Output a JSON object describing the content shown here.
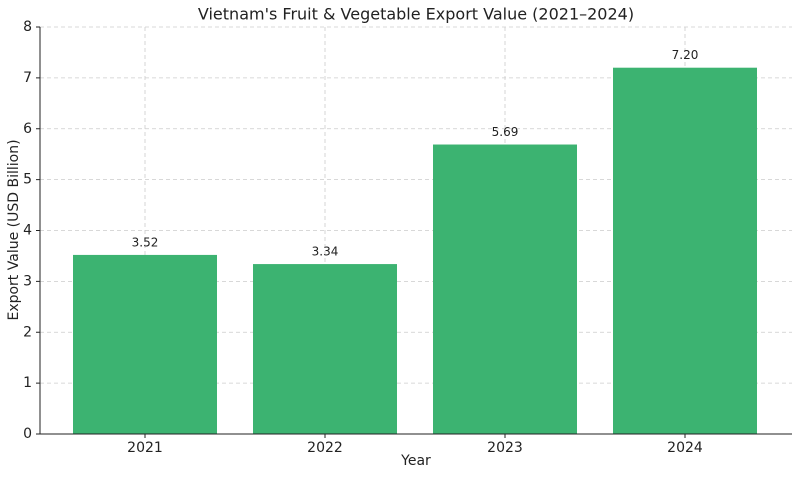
{
  "chart_data": {
    "type": "bar",
    "title": "Vietnam's Fruit & Vegetable Export Value (2021–2024)",
    "x_label": "Year",
    "y_label": "Export Value (USD Billion)",
    "categories": [
      "2021",
      "2022",
      "2023",
      "2024"
    ],
    "values": [
      3.52,
      3.34,
      5.69,
      7.2
    ],
    "value_labels": [
      "3.52",
      "3.34",
      "5.69",
      "7.20"
    ],
    "color": "#3cb371",
    "ylim": [
      0,
      8
    ],
    "yticks": [
      0,
      1,
      2,
      3,
      4,
      5,
      6,
      7,
      8
    ],
    "grid": true
  }
}
